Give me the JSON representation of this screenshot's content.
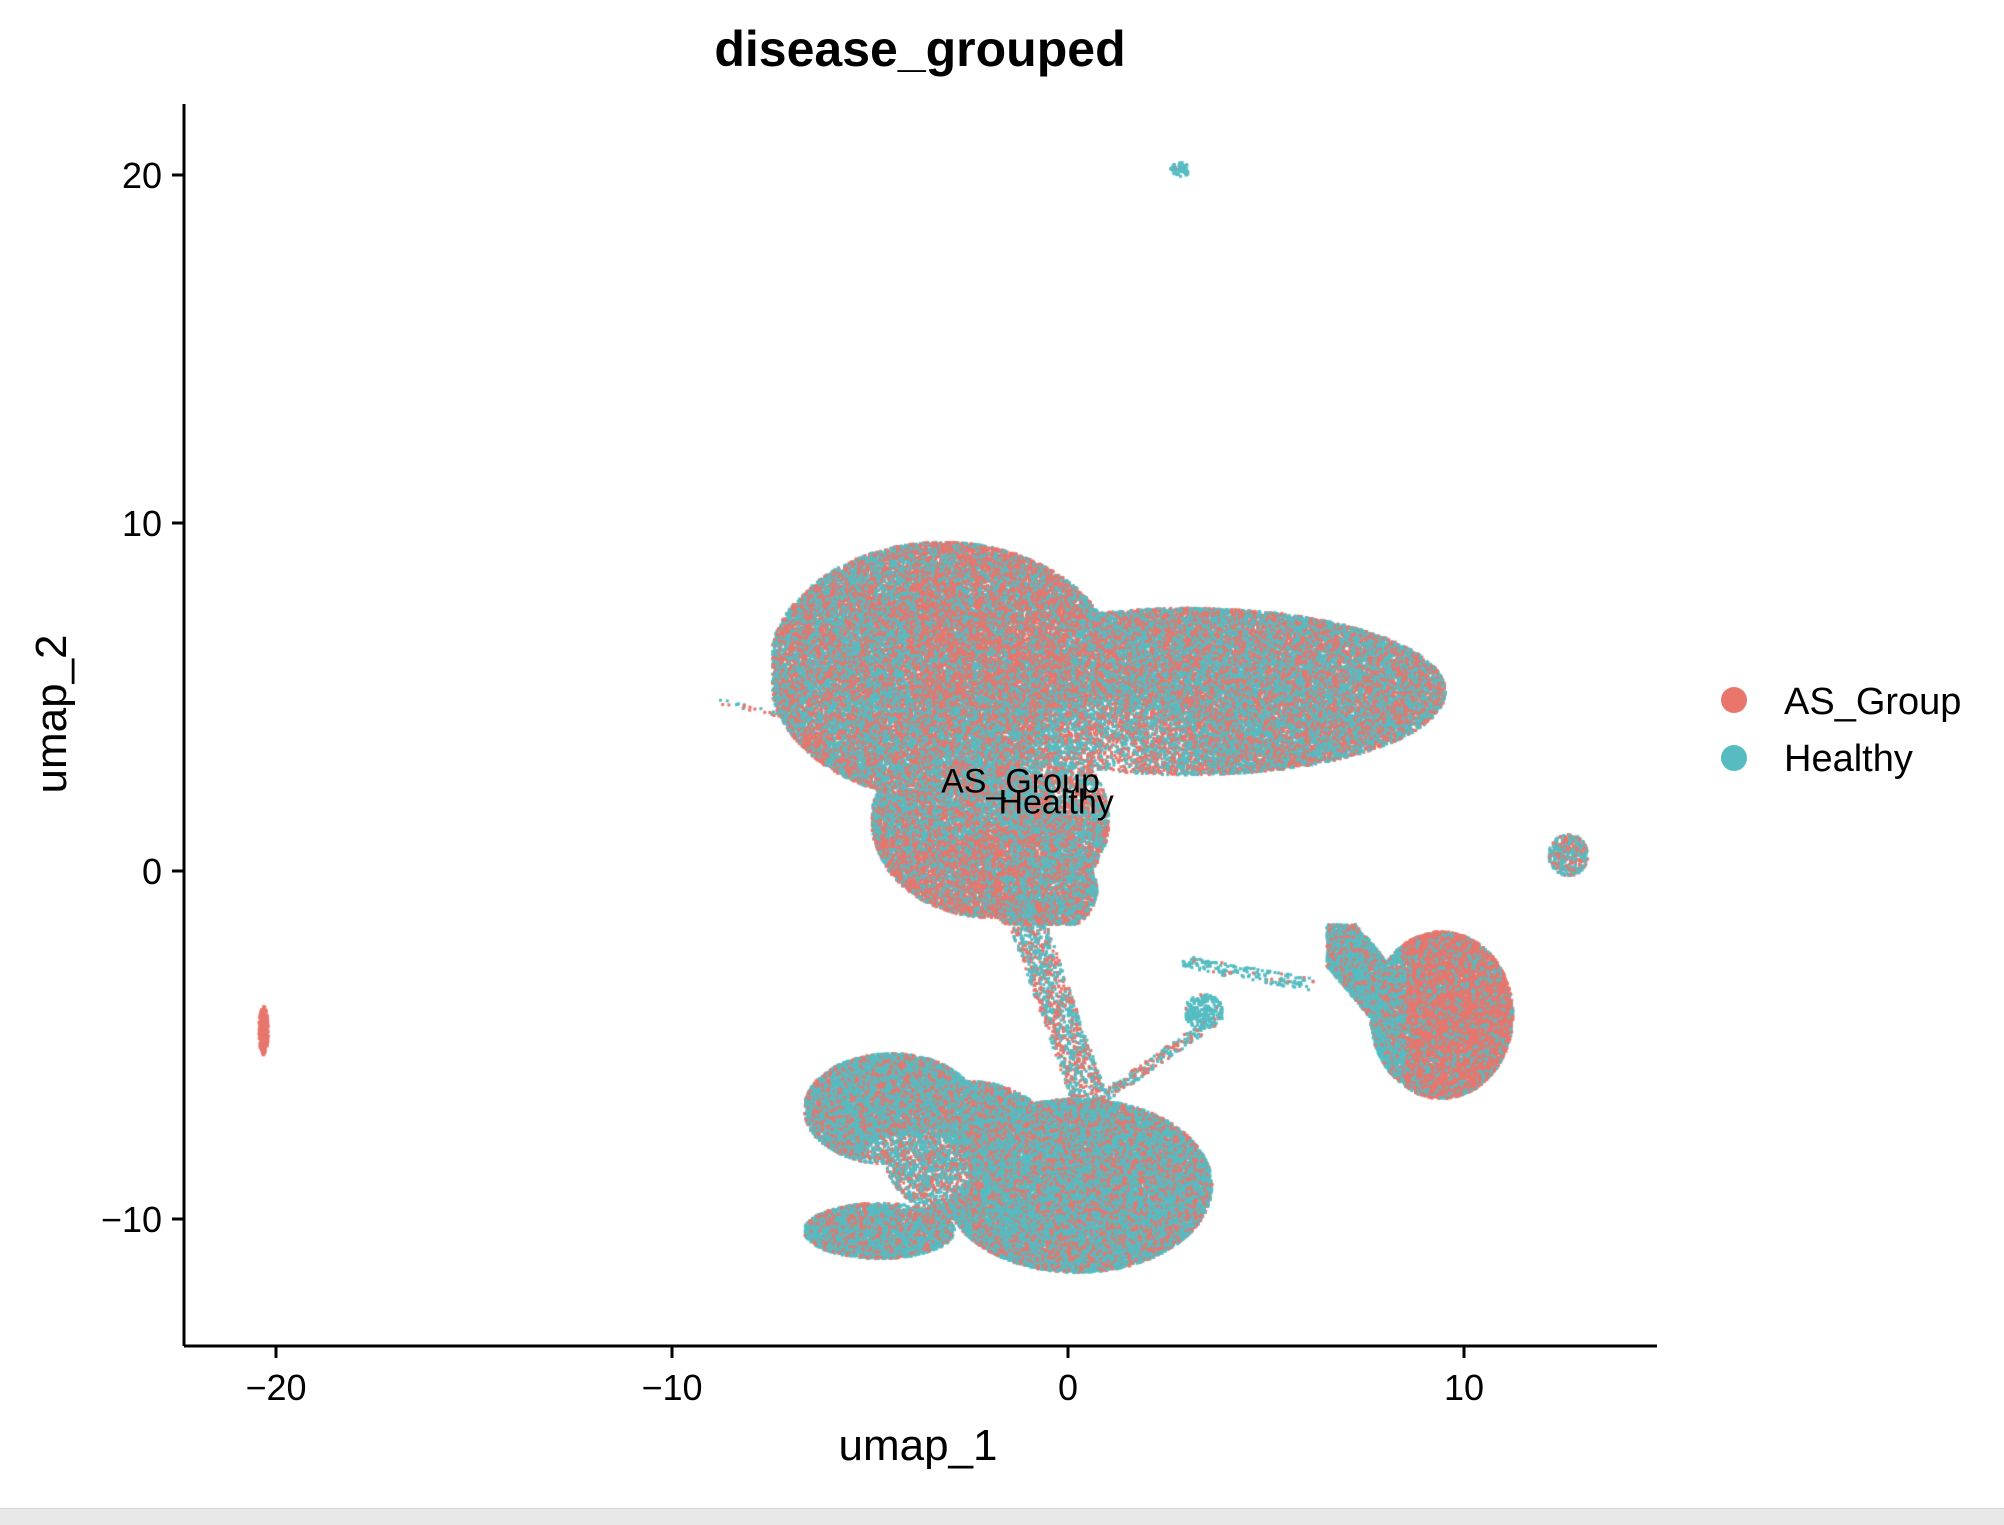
{
  "chart_data": {
    "type": "scatter",
    "title": "disease_grouped",
    "xlabel": "umap_1",
    "ylabel": "umap_2",
    "xlim": [
      -22.5,
      15
    ],
    "ylim": [
      -13.5,
      22
    ],
    "xticks": [
      -20,
      -10,
      0,
      10
    ],
    "yticks": [
      -10,
      0,
      10,
      20
    ],
    "xtick_labels": [
      "−20",
      "−10",
      "0",
      "10"
    ],
    "ytick_labels": [
      "−10",
      "0",
      "10",
      "20"
    ],
    "grid": false,
    "legend_position": "right",
    "series": [
      {
        "name": "AS_Group",
        "color": "#E8766D"
      },
      {
        "name": "Healthy",
        "color": "#56BCC2"
      }
    ],
    "clusters": [
      {
        "id": "main-upper",
        "x": [
          -7.5,
          9.5
        ],
        "y": [
          -1.5,
          9.5
        ]
      },
      {
        "id": "stem",
        "x": [
          -1.5,
          1.5
        ],
        "y": [
          -7,
          -1
        ]
      },
      {
        "id": "bottom",
        "x": [
          -7,
          4
        ],
        "y": [
          -12,
          -5
        ]
      },
      {
        "id": "right-blob",
        "x": [
          6.5,
          11.5
        ],
        "y": [
          -6.5,
          -1.5
        ]
      },
      {
        "id": "far-right",
        "x": [
          12,
          13.2
        ],
        "y": [
          -0.3,
          1.3
        ]
      },
      {
        "id": "top-small",
        "x": [
          2.5,
          3
        ],
        "y": [
          20,
          20.5
        ]
      },
      {
        "id": "far-left",
        "x": [
          -20.5,
          -20.2
        ],
        "y": [
          -5.3,
          -3.8
        ]
      }
    ],
    "annotations": [
      {
        "text": "AS_Group",
        "x": -1.2,
        "y": 2.6
      },
      {
        "text": "Healthy",
        "x": -0.3,
        "y": 2.0
      }
    ]
  }
}
